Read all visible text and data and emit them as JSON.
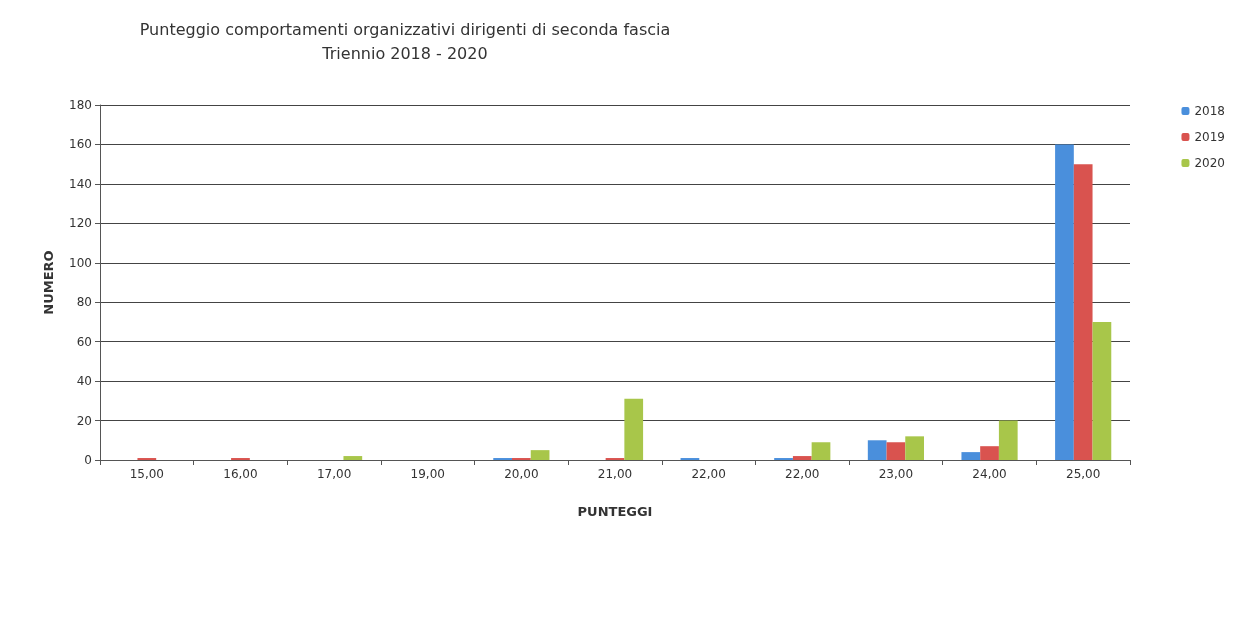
{
  "chart_data": {
    "type": "bar",
    "title": "Punteggio comportamenti organizzativi dirigenti di seconda fascia\nTriennio 2018 - 2020",
    "xlabel": "PUNTEGGI",
    "ylabel": "NUMERO",
    "categories": [
      "15,00",
      "16,00",
      "17,00",
      "19,00",
      "20,00",
      "21,00",
      "22,00",
      "22,00",
      "23,00",
      "24,00",
      "25,00"
    ],
    "series": [
      {
        "name": "2018",
        "color": "#4a8fdc",
        "values": [
          0,
          0,
          0,
          0,
          1,
          0,
          1,
          1,
          10,
          4,
          160
        ]
      },
      {
        "name": "2019",
        "color": "#d9534f",
        "values": [
          1,
          1,
          0,
          0,
          1,
          1,
          0,
          2,
          9,
          7,
          150
        ]
      },
      {
        "name": "2020",
        "color": "#a8c64a",
        "values": [
          0,
          0,
          2,
          0,
          5,
          31,
          0,
          9,
          12,
          20,
          70
        ]
      }
    ],
    "ylim": [
      0,
      180
    ],
    "yticks": [
      0,
      20,
      40,
      60,
      80,
      100,
      120,
      140,
      160,
      180
    ],
    "grid": "y",
    "legend": "top right"
  }
}
